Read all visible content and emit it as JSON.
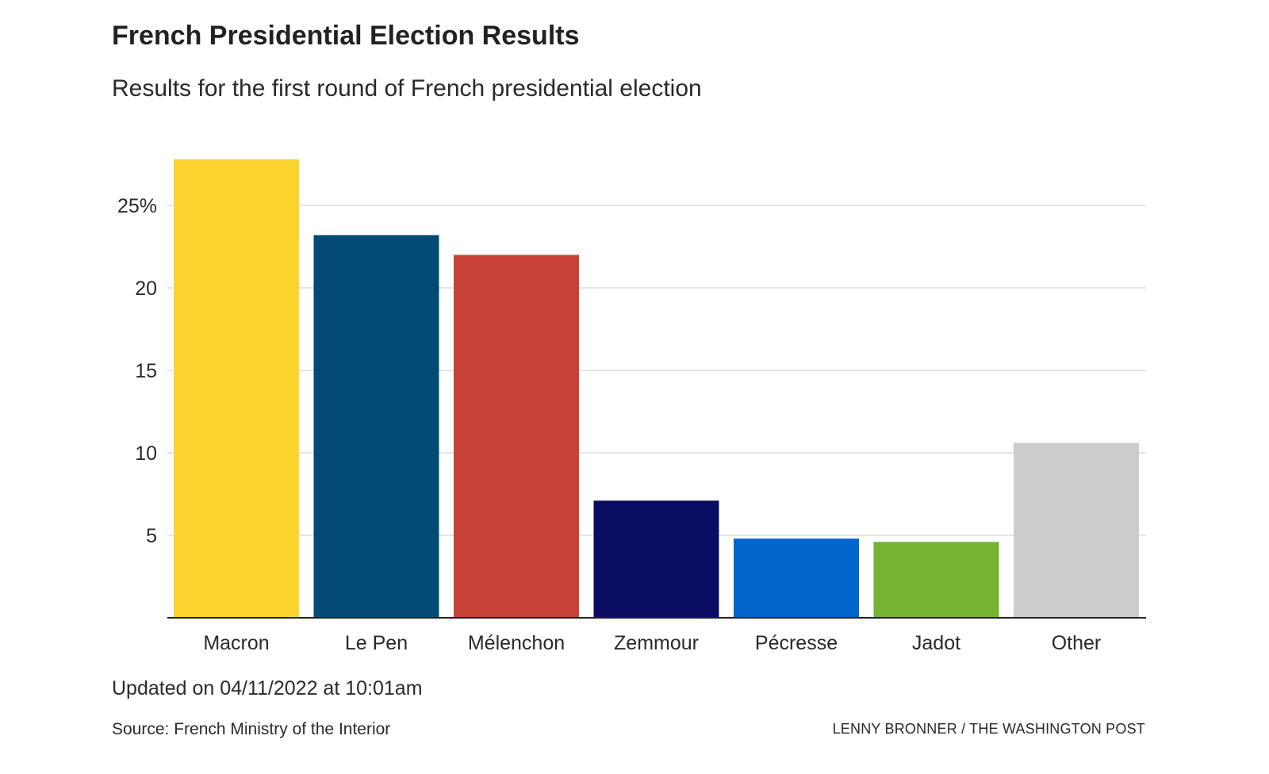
{
  "title": "French Presidential Election Results",
  "subtitle": "Results for the first round of French presidential election",
  "updated": "Updated on 04/11/2022 at 10:01am",
  "source": "Source: French Ministry of the Interior",
  "credit": "LENNY BRONNER / THE WASHINGTON POST",
  "chart_data": {
    "type": "bar",
    "categories": [
      "Macron",
      "Le Pen",
      "Mélenchon",
      "Zemmour",
      "Pécresse",
      "Jadot",
      "Other"
    ],
    "values": [
      27.8,
      23.2,
      22.0,
      7.1,
      4.8,
      4.6,
      10.6
    ],
    "colors": [
      "#fdd42f",
      "#004a76",
      "#c64237",
      "#0a0c62",
      "#0066cc",
      "#77b433",
      "#cccccc"
    ],
    "yticks": [
      5,
      10,
      15,
      20,
      25
    ],
    "ytick_labels": [
      "5",
      "10",
      "15",
      "20",
      "25%"
    ],
    "ylim": [
      0,
      28
    ],
    "grid": true
  }
}
